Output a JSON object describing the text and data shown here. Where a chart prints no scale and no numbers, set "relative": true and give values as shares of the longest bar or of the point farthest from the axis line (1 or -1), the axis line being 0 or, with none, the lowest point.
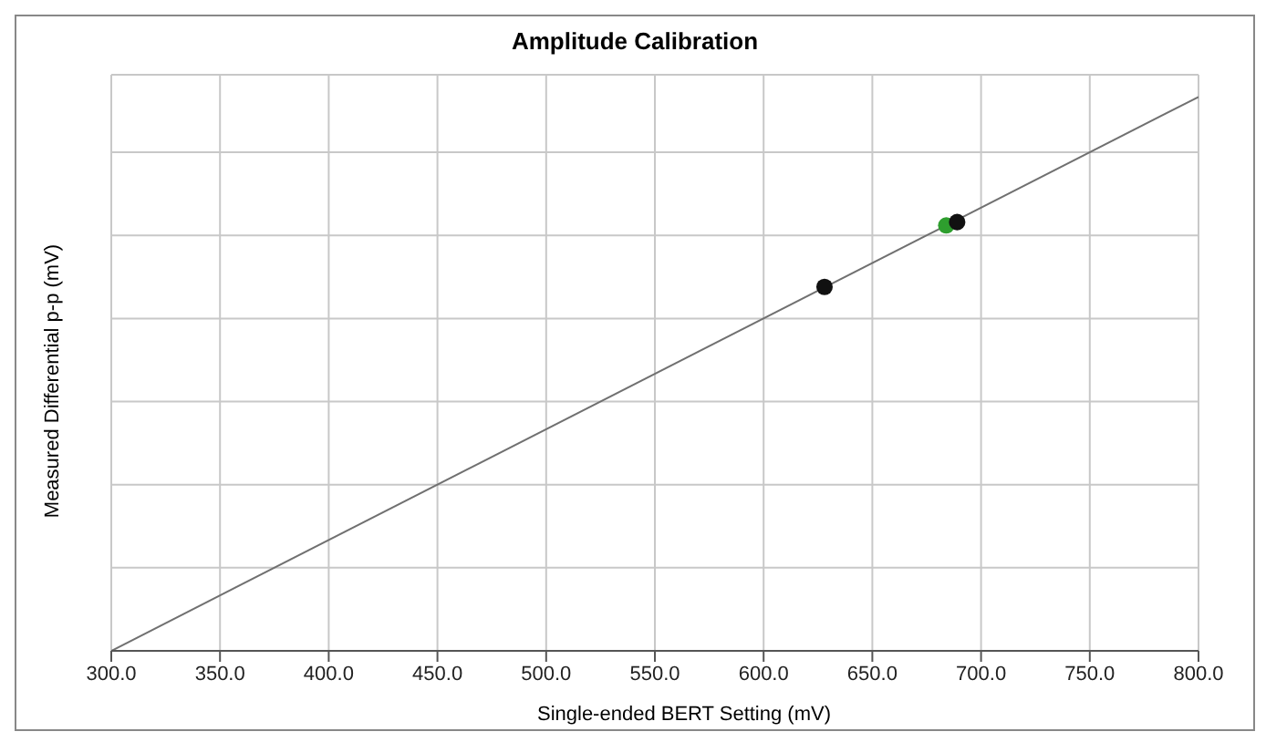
{
  "chart_data": {
    "type": "scatter",
    "title": "Amplitude Calibration",
    "xlabel": "Single-ended BERT Setting (mV)",
    "ylabel": "Measured Differential p-p (mV)",
    "relative": true,
    "grid": true,
    "xlim": [
      300,
      800
    ],
    "xticks": [
      {
        "value": 300,
        "label": "300.0"
      },
      {
        "value": 350,
        "label": "350.0"
      },
      {
        "value": 400,
        "label": "400.0"
      },
      {
        "value": 450,
        "label": "450.0"
      },
      {
        "value": 500,
        "label": "500.0"
      },
      {
        "value": 550,
        "label": "550.0"
      },
      {
        "value": 600,
        "label": "600.0"
      },
      {
        "value": 650,
        "label": "650.0"
      },
      {
        "value": 700,
        "label": "700.0"
      },
      {
        "value": 750,
        "label": "750.0"
      },
      {
        "value": 800,
        "label": "800.0"
      }
    ],
    "series": [
      {
        "type": "line",
        "marker": "none",
        "color": "#707070",
        "x": [
          300,
          800
        ],
        "values": [
          0,
          1
        ]
      },
      {
        "marker": "circle",
        "colors": [
          "#111111",
          "#2e9e2e",
          "#111111"
        ],
        "x": [
          628,
          684,
          689
        ],
        "values": [
          0.657,
          0.768,
          0.774
        ]
      }
    ]
  }
}
